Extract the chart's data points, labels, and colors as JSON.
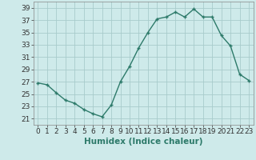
{
  "x": [
    0,
    1,
    2,
    3,
    4,
    5,
    6,
    7,
    8,
    9,
    10,
    11,
    12,
    13,
    14,
    15,
    16,
    17,
    18,
    19,
    20,
    21,
    22,
    23
  ],
  "y": [
    26.8,
    26.5,
    25.2,
    24.0,
    23.5,
    22.5,
    21.8,
    21.3,
    23.2,
    27.0,
    29.5,
    32.5,
    35.0,
    37.2,
    37.5,
    38.3,
    37.5,
    38.8,
    37.5,
    37.5,
    34.5,
    32.8,
    28.2,
    27.2
  ],
  "line_color": "#2d7a6a",
  "marker": "+",
  "marker_size": 3,
  "marker_linewidth": 1.0,
  "line_width": 1.0,
  "bg_color": "#ceeaea",
  "grid_color": "#a8cccc",
  "xlabel": "Humidex (Indice chaleur)",
  "xlabel_fontsize": 7.5,
  "tick_fontsize": 6.5,
  "ylim": [
    20,
    40
  ],
  "xlim": [
    -0.5,
    23.5
  ],
  "yticks": [
    21,
    23,
    25,
    27,
    29,
    31,
    33,
    35,
    37,
    39
  ],
  "xticks": [
    0,
    1,
    2,
    3,
    4,
    5,
    6,
    7,
    8,
    9,
    10,
    11,
    12,
    13,
    14,
    15,
    16,
    17,
    18,
    19,
    20,
    21,
    22,
    23
  ]
}
